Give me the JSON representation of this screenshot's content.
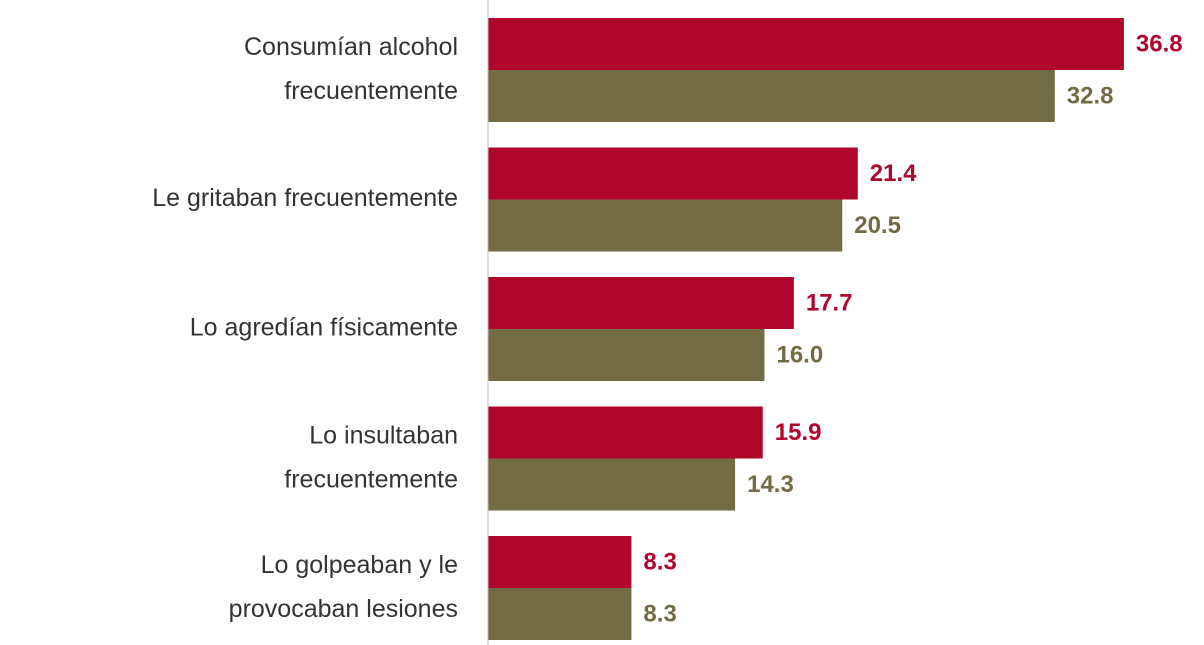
{
  "chart_data": {
    "type": "bar",
    "orientation": "horizontal",
    "categories": [
      "Consumían alcohol\nfrecuentemente",
      "Le gritaban frecuentemente",
      "Lo agredían físicamente",
      "Lo insultaban\nfrecuentemente",
      "Lo golpeaban y le\nprovocaban lesiones"
    ],
    "series": [
      {
        "color": "#b0062c",
        "values": [
          36.8,
          21.4,
          17.7,
          15.9,
          8.3
        ],
        "value_labels": [
          "36.8",
          "21.4",
          "17.7",
          "15.9",
          "8.3"
        ]
      },
      {
        "color": "#736b43",
        "values": [
          32.8,
          20.5,
          16.0,
          14.3,
          8.3
        ],
        "value_labels": [
          "32.8",
          "20.5",
          "16.0",
          "14.3",
          "8.3"
        ]
      }
    ],
    "xlim": [
      0,
      40
    ]
  }
}
